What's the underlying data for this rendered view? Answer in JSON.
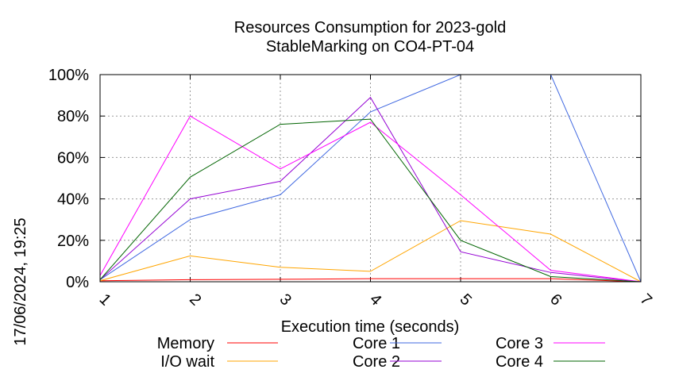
{
  "chart_data": {
    "type": "line",
    "title_line1": "Resources Consumption for 2023-gold",
    "title_line2": "StableMarking on CO4-PT-04",
    "xlabel": "Execution time (seconds)",
    "ylabel": "",
    "timestamp": "17/06/2024, 19:25",
    "x": [
      1,
      2,
      3,
      4,
      5,
      6,
      7
    ],
    "xlim": [
      1,
      7
    ],
    "ylim": [
      0,
      100
    ],
    "x_ticks": [
      "1",
      "2",
      "3",
      "4",
      "5",
      "6",
      "7"
    ],
    "y_ticks": [
      "0%",
      "20%",
      "40%",
      "60%",
      "80%",
      "100%"
    ],
    "y_tick_values": [
      0,
      20,
      40,
      60,
      80,
      100
    ],
    "grid": true,
    "legend_position": "bottom",
    "series": [
      {
        "name": "Memory",
        "color": "#ff0000",
        "values": [
          0.5,
          1,
          1.2,
          1.5,
          1.5,
          1.5,
          0
        ]
      },
      {
        "name": "I/O wait",
        "color": "#ffa500",
        "values": [
          0.5,
          12.5,
          7,
          5,
          29.5,
          23,
          0
        ]
      },
      {
        "name": "Core 1",
        "color": "#4169e1",
        "values": [
          1,
          30,
          42,
          82,
          100,
          100,
          0
        ]
      },
      {
        "name": "Core 2",
        "color": "#9400d3",
        "values": [
          1,
          40,
          48.5,
          89,
          14.5,
          4.5,
          0
        ]
      },
      {
        "name": "Core 3",
        "color": "#ff00ff",
        "values": [
          3,
          80,
          54.5,
          77,
          42,
          5.5,
          0
        ]
      },
      {
        "name": "Core 4",
        "color": "#006400",
        "values": [
          1,
          50.5,
          76,
          78.5,
          20,
          2.5,
          0
        ]
      }
    ]
  }
}
